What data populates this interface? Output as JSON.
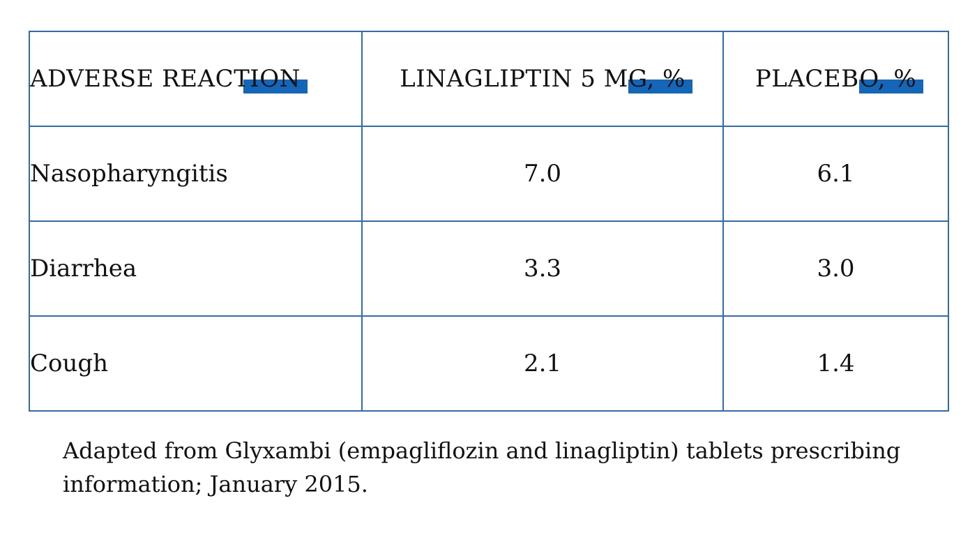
{
  "table": {
    "headers": [
      "ADVERSE REACTION",
      "LINAGLIPTIN 5 MG, %",
      "PLACEBO, %"
    ],
    "rows": [
      [
        "Nasopharyngitis",
        "7.0",
        "6.1"
      ],
      [
        "Diarrhea",
        "3.3",
        "3.0"
      ],
      [
        "Cough",
        "2.1",
        "1.4"
      ]
    ],
    "border_color": "#2e6db4",
    "highlight_color": "#1467b8"
  },
  "caption": {
    "line1": "Adapted from Glyxambi (empagliflozin and linagliptin) tablets prescribing",
    "line2": "information; January 2015."
  }
}
